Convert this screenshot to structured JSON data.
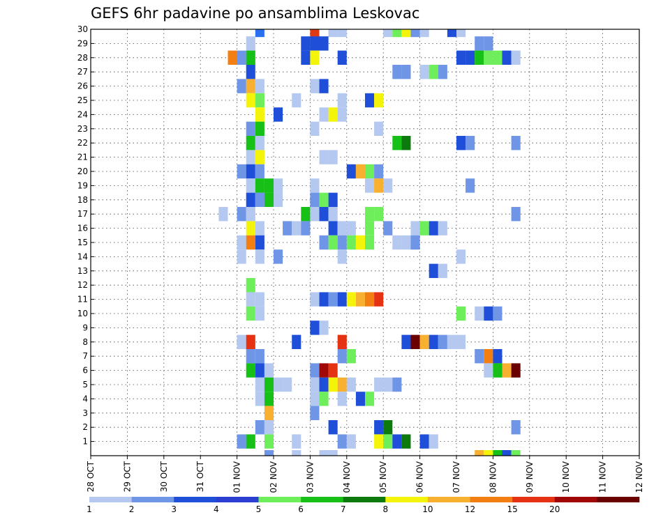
{
  "chart_data": {
    "type": "heatmap",
    "title": "GEFS 6hr padavine po ansamblima Leskovac",
    "xlabel": "",
    "ylabel": "",
    "x_tick_labels": [
      "28 OCT",
      "29 OCT",
      "30 OCT",
      "31 OCT",
      "01 NOV",
      "02 NOV",
      "03 NOV",
      "04 NOV",
      "05 NOV",
      "06 NOV",
      "07 NOV",
      "08 NOV",
      "09 NOV",
      "10 NOV",
      "11 NOV",
      "12 NOV"
    ],
    "y_tick_labels": [
      "1",
      "2",
      "3",
      "4",
      "5",
      "6",
      "7",
      "8",
      "9",
      "10",
      "11",
      "12",
      "13",
      "14",
      "15",
      "16",
      "17",
      "18",
      "19",
      "20",
      "21",
      "22",
      "23",
      "24",
      "25",
      "26",
      "27",
      "28",
      "29",
      "30"
    ],
    "x_unit": "6-hour step from 28 OCT 00Z (step 0 = 28 OCT, 4 steps per day)",
    "y_range": [
      0,
      30
    ],
    "grid": true,
    "legend": "bottom colorbar",
    "levels": [
      "1",
      "2",
      "3",
      "4",
      "5",
      "6",
      "7",
      "8",
      "10",
      "12",
      "15",
      "20"
    ],
    "level_colors": [
      "#b4c8f0",
      "#6e95e6",
      "#1f4fd8",
      "#2a3fd0",
      "#6eee5a",
      "#16c016",
      "#0d7a0d",
      "#f4f40a",
      "#f7b030",
      "#f37e12",
      "#e43212",
      "#a00808",
      "#6a0000"
    ],
    "cells": [
      [
        18,
        30,
        "#2a6ff0"
      ],
      [
        24,
        30,
        "#e03a12"
      ],
      [
        26,
        30,
        "#b4c8f0"
      ],
      [
        27,
        30,
        "#b4c8f0"
      ],
      [
        32,
        30,
        "#b4c8f0"
      ],
      [
        33,
        30,
        "#6eee5a"
      ],
      [
        34,
        30,
        "#f4f40a"
      ],
      [
        35,
        30,
        "#6e95e6"
      ],
      [
        36,
        30,
        "#b4c8f0"
      ],
      [
        39,
        30,
        "#1f4fd8"
      ],
      [
        40,
        30,
        "#b4c8f0"
      ],
      [
        17,
        29,
        "#b4c8f0"
      ],
      [
        23,
        29,
        "#1f4fd8"
      ],
      [
        24,
        29,
        "#1f4fd8"
      ],
      [
        25,
        29,
        "#1f4fd8"
      ],
      [
        42,
        29,
        "#6e95e6"
      ],
      [
        43,
        29,
        "#6e95e6"
      ],
      [
        15,
        28,
        "#f37e12"
      ],
      [
        16,
        28,
        "#6e95e6"
      ],
      [
        17,
        28,
        "#16c016"
      ],
      [
        23,
        28,
        "#1f4fd8"
      ],
      [
        24,
        28,
        "#f4f40a"
      ],
      [
        27,
        28,
        "#1f4fd8"
      ],
      [
        40,
        28,
        "#1f4fd8"
      ],
      [
        41,
        28,
        "#1f4fd8"
      ],
      [
        42,
        28,
        "#16c016"
      ],
      [
        43,
        28,
        "#6eee5a"
      ],
      [
        44,
        28,
        "#6eee5a"
      ],
      [
        45,
        28,
        "#1f4fd8"
      ],
      [
        46,
        28,
        "#b4c8f0"
      ],
      [
        17,
        27,
        "#1f4fd8"
      ],
      [
        33,
        27,
        "#6e95e6"
      ],
      [
        34,
        27,
        "#6e95e6"
      ],
      [
        36,
        27,
        "#b4c8f0"
      ],
      [
        37,
        27,
        "#6eee5a"
      ],
      [
        38,
        27,
        "#6e95e6"
      ],
      [
        16,
        26,
        "#6e95e6"
      ],
      [
        17,
        26,
        "#f7b030"
      ],
      [
        18,
        26,
        "#b4c8f0"
      ],
      [
        24,
        26,
        "#b4c8f0"
      ],
      [
        25,
        26,
        "#1f4fd8"
      ],
      [
        17,
        25,
        "#f4f40a"
      ],
      [
        18,
        25,
        "#6eee5a"
      ],
      [
        22,
        25,
        "#b4c8f0"
      ],
      [
        27,
        25,
        "#b4c8f0"
      ],
      [
        30,
        25,
        "#1f4fd8"
      ],
      [
        31,
        25,
        "#f4f40a"
      ],
      [
        18,
        24,
        "#f4f40a"
      ],
      [
        20,
        24,
        "#1f4fd8"
      ],
      [
        25,
        24,
        "#b4c8f0"
      ],
      [
        26,
        24,
        "#f4f40a"
      ],
      [
        27,
        24,
        "#b4c8f0"
      ],
      [
        17,
        23,
        "#6e95e6"
      ],
      [
        18,
        23,
        "#16c016"
      ],
      [
        24,
        23,
        "#b4c8f0"
      ],
      [
        31,
        23,
        "#b4c8f0"
      ],
      [
        17,
        22,
        "#16c016"
      ],
      [
        18,
        22,
        "#b4c8f0"
      ],
      [
        33,
        22,
        "#16c016"
      ],
      [
        34,
        22,
        "#0d7a0d"
      ],
      [
        40,
        22,
        "#1f4fd8"
      ],
      [
        41,
        22,
        "#6e95e6"
      ],
      [
        46,
        22,
        "#6e95e6"
      ],
      [
        17,
        21,
        "#b4c8f0"
      ],
      [
        18,
        21,
        "#f4f40a"
      ],
      [
        25,
        21,
        "#b4c8f0"
      ],
      [
        26,
        21,
        "#b4c8f0"
      ],
      [
        16,
        20,
        "#6e95e6"
      ],
      [
        17,
        20,
        "#1f4fd8"
      ],
      [
        18,
        20,
        "#6e95e6"
      ],
      [
        28,
        20,
        "#1f4fd8"
      ],
      [
        29,
        20,
        "#f7b030"
      ],
      [
        30,
        20,
        "#6eee5a"
      ],
      [
        31,
        20,
        "#6e95e6"
      ],
      [
        17,
        19,
        "#b4c8f0"
      ],
      [
        18,
        19,
        "#16c016"
      ],
      [
        19,
        19,
        "#16c016"
      ],
      [
        20,
        19,
        "#b4c8f0"
      ],
      [
        24,
        19,
        "#b4c8f0"
      ],
      [
        30,
        19,
        "#b4c8f0"
      ],
      [
        31,
        19,
        "#f7b030"
      ],
      [
        32,
        19,
        "#b4c8f0"
      ],
      [
        41,
        19,
        "#6e95e6"
      ],
      [
        17,
        18,
        "#1f4fd8"
      ],
      [
        18,
        18,
        "#6e95e6"
      ],
      [
        19,
        18,
        "#16c016"
      ],
      [
        20,
        18,
        "#b4c8f0"
      ],
      [
        24,
        18,
        "#6e95e6"
      ],
      [
        25,
        18,
        "#6eee5a"
      ],
      [
        26,
        18,
        "#1f4fd8"
      ],
      [
        14,
        17,
        "#b4c8f0"
      ],
      [
        16,
        17,
        "#6e95e6"
      ],
      [
        17,
        17,
        "#b4c8f0"
      ],
      [
        23,
        17,
        "#16c016"
      ],
      [
        24,
        17,
        "#b4c8f0"
      ],
      [
        25,
        17,
        "#1f4fd8"
      ],
      [
        26,
        17,
        "#b4c8f0"
      ],
      [
        30,
        17,
        "#6eee5a"
      ],
      [
        31,
        17,
        "#6eee5a"
      ],
      [
        46,
        17,
        "#6e95e6"
      ],
      [
        17,
        16,
        "#f4f40a"
      ],
      [
        18,
        16,
        "#b4c8f0"
      ],
      [
        21,
        16,
        "#6e95e6"
      ],
      [
        22,
        16,
        "#b4c8f0"
      ],
      [
        23,
        16,
        "#6e95e6"
      ],
      [
        26,
        16,
        "#1f4fd8"
      ],
      [
        27,
        16,
        "#b4c8f0"
      ],
      [
        28,
        16,
        "#b4c8f0"
      ],
      [
        30,
        16,
        "#6eee5a"
      ],
      [
        32,
        16,
        "#6e95e6"
      ],
      [
        35,
        16,
        "#b4c8f0"
      ],
      [
        36,
        16,
        "#6eee5a"
      ],
      [
        37,
        16,
        "#1f4fd8"
      ],
      [
        38,
        16,
        "#b4c8f0"
      ],
      [
        16,
        15,
        "#b4c8f0"
      ],
      [
        17,
        15,
        "#f37e12"
      ],
      [
        18,
        15,
        "#1f4fd8"
      ],
      [
        25,
        15,
        "#6e95e6"
      ],
      [
        26,
        15,
        "#6eee5a"
      ],
      [
        27,
        15,
        "#6e95e6"
      ],
      [
        28,
        15,
        "#6eee5a"
      ],
      [
        29,
        15,
        "#f4f40a"
      ],
      [
        30,
        15,
        "#6eee5a"
      ],
      [
        33,
        15,
        "#b4c8f0"
      ],
      [
        34,
        15,
        "#b4c8f0"
      ],
      [
        35,
        15,
        "#6e95e6"
      ],
      [
        16,
        14,
        "#b4c8f0"
      ],
      [
        18,
        14,
        "#b4c8f0"
      ],
      [
        20,
        14,
        "#6e95e6"
      ],
      [
        27,
        14,
        "#b4c8f0"
      ],
      [
        40,
        14,
        "#b4c8f0"
      ],
      [
        17,
        12,
        "#6eee5a"
      ],
      [
        37,
        13,
        "#1f4fd8"
      ],
      [
        38,
        13,
        "#b4c8f0"
      ],
      [
        17,
        11,
        "#b4c8f0"
      ],
      [
        18,
        11,
        "#b4c8f0"
      ],
      [
        24,
        11,
        "#b4c8f0"
      ],
      [
        25,
        11,
        "#1f4fd8"
      ],
      [
        26,
        11,
        "#6e95e6"
      ],
      [
        27,
        11,
        "#1f4fd8"
      ],
      [
        28,
        11,
        "#f4f40a"
      ],
      [
        29,
        11,
        "#f7b030"
      ],
      [
        30,
        11,
        "#f37e12"
      ],
      [
        31,
        11,
        "#e43212"
      ],
      [
        17,
        10,
        "#6eee5a"
      ],
      [
        18,
        10,
        "#b4c8f0"
      ],
      [
        40,
        10,
        "#6eee5a"
      ],
      [
        42,
        10,
        "#b4c8f0"
      ],
      [
        43,
        10,
        "#1f4fd8"
      ],
      [
        44,
        10,
        "#6e95e6"
      ],
      [
        24,
        9,
        "#1f4fd8"
      ],
      [
        25,
        9,
        "#b4c8f0"
      ],
      [
        16,
        8,
        "#b4c8f0"
      ],
      [
        17,
        8,
        "#e43212"
      ],
      [
        22,
        8,
        "#1f4fd8"
      ],
      [
        27,
        8,
        "#e43212"
      ],
      [
        34,
        8,
        "#1f4fd8"
      ],
      [
        35,
        8,
        "#6a0000"
      ],
      [
        36,
        8,
        "#f7b030"
      ],
      [
        37,
        8,
        "#1f4fd8"
      ],
      [
        38,
        8,
        "#6e95e6"
      ],
      [
        39,
        8,
        "#b4c8f0"
      ],
      [
        40,
        8,
        "#b4c8f0"
      ],
      [
        17,
        7,
        "#6e95e6"
      ],
      [
        18,
        7,
        "#6e95e6"
      ],
      [
        27,
        7,
        "#6e95e6"
      ],
      [
        28,
        7,
        "#6eee5a"
      ],
      [
        42,
        7,
        "#6e95e6"
      ],
      [
        43,
        7,
        "#f37e12"
      ],
      [
        44,
        7,
        "#1f4fd8"
      ],
      [
        17,
        6,
        "#16c016"
      ],
      [
        18,
        6,
        "#1f4fd8"
      ],
      [
        19,
        6,
        "#b4c8f0"
      ],
      [
        24,
        6,
        "#6e95e6"
      ],
      [
        25,
        6,
        "#a00808"
      ],
      [
        26,
        6,
        "#e43212"
      ],
      [
        43,
        6,
        "#b4c8f0"
      ],
      [
        44,
        6,
        "#16c016"
      ],
      [
        45,
        6,
        "#f7b030"
      ],
      [
        46,
        6,
        "#6a0000"
      ],
      [
        18,
        5,
        "#b4c8f0"
      ],
      [
        19,
        5,
        "#16c016"
      ],
      [
        20,
        5,
        "#b4c8f0"
      ],
      [
        21,
        5,
        "#b4c8f0"
      ],
      [
        24,
        5,
        "#b4c8f0"
      ],
      [
        25,
        5,
        "#1f4fd8"
      ],
      [
        26,
        5,
        "#f4f40a"
      ],
      [
        27,
        5,
        "#f7b030"
      ],
      [
        28,
        5,
        "#b4c8f0"
      ],
      [
        31,
        5,
        "#b4c8f0"
      ],
      [
        32,
        5,
        "#b4c8f0"
      ],
      [
        33,
        5,
        "#6e95e6"
      ],
      [
        18,
        4,
        "#b4c8f0"
      ],
      [
        19,
        4,
        "#16c016"
      ],
      [
        24,
        4,
        "#b4c8f0"
      ],
      [
        25,
        4,
        "#6eee5a"
      ],
      [
        27,
        4,
        "#b4c8f0"
      ],
      [
        29,
        4,
        "#1f4fd8"
      ],
      [
        30,
        4,
        "#6eee5a"
      ],
      [
        19,
        3,
        "#f7b030"
      ],
      [
        24,
        3,
        "#6e95e6"
      ],
      [
        18,
        2,
        "#6e95e6"
      ],
      [
        19,
        2,
        "#b4c8f0"
      ],
      [
        26,
        2,
        "#1f4fd8"
      ],
      [
        31,
        2,
        "#1f4fd8"
      ],
      [
        32,
        2,
        "#0d7a0d"
      ],
      [
        46,
        2,
        "#6e95e6"
      ],
      [
        16,
        1,
        "#6e95e6"
      ],
      [
        17,
        1,
        "#16c016"
      ],
      [
        19,
        1,
        "#6eee5a"
      ],
      [
        22,
        1,
        "#b4c8f0"
      ],
      [
        27,
        1,
        "#6e95e6"
      ],
      [
        28,
        1,
        "#b4c8f0"
      ],
      [
        31,
        1,
        "#f4f40a"
      ],
      [
        32,
        1,
        "#6eee5a"
      ],
      [
        33,
        1,
        "#1f4fd8"
      ],
      [
        34,
        1,
        "#0d7a0d"
      ],
      [
        36,
        1,
        "#1f4fd8"
      ],
      [
        37,
        1,
        "#b4c8f0"
      ],
      [
        19,
        0,
        "#6e95e6"
      ],
      [
        22,
        0,
        "#b4c8f0"
      ],
      [
        25,
        0,
        "#b4c8f0"
      ],
      [
        26,
        0,
        "#b4c8f0"
      ],
      [
        42,
        0,
        "#f7b030"
      ],
      [
        43,
        0,
        "#f4f40a"
      ],
      [
        44,
        0,
        "#16c016"
      ],
      [
        45,
        0,
        "#1f4fd8"
      ],
      [
        46,
        0,
        "#6eee5a"
      ]
    ]
  }
}
